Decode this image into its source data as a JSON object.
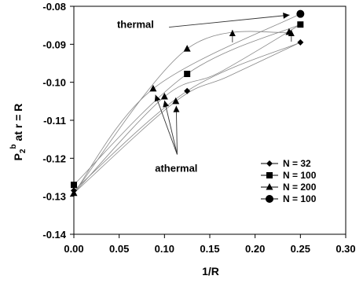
{
  "chart_data": {
    "type": "scatter",
    "xlabel": "1/R",
    "ylabel_main": "P",
    "ylabel_sub": "2",
    "ylabel_sup": "b",
    "ylabel_rest": " at  r = R",
    "xlim": [
      0,
      0.3
    ],
    "ylim": [
      -0.14,
      -0.08
    ],
    "x_ticks": [
      0,
      0.05,
      0.1,
      0.15,
      0.2,
      0.25,
      0.3
    ],
    "x_tick_labels": [
      "0.00",
      "0.05",
      "0.10",
      "0.15",
      "0.20",
      "0.25",
      "0.30"
    ],
    "y_ticks": [
      -0.08,
      -0.09,
      -0.1,
      -0.11,
      -0.12,
      -0.13,
      -0.14
    ],
    "y_tick_labels": [
      "-0.08",
      "-0.09",
      "-0.10",
      "-0.11",
      "-0.12",
      "-0.13",
      "-0.14"
    ],
    "grid": false,
    "legend_position": "lower-right",
    "series": [
      {
        "name": "N = 32",
        "marker": "diamond",
        "group": "athermal",
        "x": [
          0,
          0.125,
          0.25
        ],
        "y": [
          -0.1285,
          -0.1023,
          -0.0895
        ]
      },
      {
        "name": "N = 100",
        "marker": "square",
        "group": "athermal",
        "x": [
          0,
          0.125,
          0.25
        ],
        "y": [
          -0.127,
          -0.0978,
          -0.0848
        ]
      },
      {
        "name": "N = 200",
        "marker": "triangle",
        "group": "athermal",
        "x": [
          0,
          0.0875,
          0.1,
          0.1125,
          0.125,
          0.2375
        ],
        "y": [
          -0.1292,
          -0.1017,
          -0.1038,
          -0.105,
          -0.0912,
          -0.0868
        ]
      },
      {
        "name": "N = 100",
        "marker": "circle",
        "group": "thermal",
        "x": [
          0.25
        ],
        "y": [
          -0.082
        ]
      }
    ],
    "annotations": [
      {
        "text": "thermal",
        "x": 0.068,
        "y": -0.0857
      },
      {
        "text": "athermal",
        "x": 0.113,
        "y": -0.1235
      }
    ],
    "thermal_arrow": {
      "from": [
        0.105,
        -0.0855
      ],
      "to": [
        0.238,
        -0.0823
      ]
    },
    "athermal_arrows": [
      {
        "from": [
          0.114,
          -0.119
        ],
        "to": [
          0.09,
          -0.1033
        ]
      },
      {
        "from": [
          0.114,
          -0.119
        ],
        "to": [
          0.1,
          -0.1048
        ]
      },
      {
        "from": [
          0.114,
          -0.119
        ],
        "to": [
          0.113,
          -0.1062
        ]
      }
    ],
    "up_arrows": [
      {
        "x": 0.175,
        "from": -0.0895,
        "to": -0.0862
      },
      {
        "x": 0.24,
        "from": -0.0893,
        "to": -0.0862
      }
    ]
  }
}
